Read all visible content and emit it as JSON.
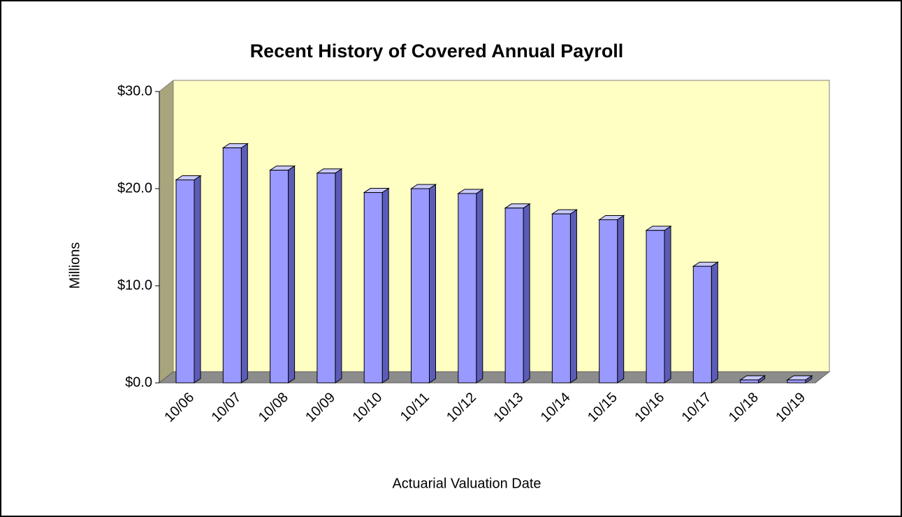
{
  "chart_data": {
    "type": "bar3d",
    "title": "Recent History of Covered Annual Payroll",
    "y_label": "Millions",
    "x_label": "Actuarial Valuation Date",
    "categories": [
      "10/06",
      "10/07",
      "10/08",
      "10/09",
      "10/10",
      "10/11",
      "10/12",
      "10/13",
      "10/14",
      "10/15",
      "10/16",
      "10/17",
      "10/18",
      "10/19"
    ],
    "values": [
      20.9,
      24.2,
      21.9,
      21.6,
      19.6,
      20.0,
      19.5,
      18.0,
      17.4,
      16.8,
      15.7,
      12.0,
      0.3,
      0.3
    ],
    "color": "#9999ff",
    "ylim": [
      0,
      30
    ],
    "yticks": [
      {
        "value": 0,
        "label": "$0.0"
      },
      {
        "value": 10,
        "label": "$10.0"
      },
      {
        "value": 20,
        "label": "$20.0"
      },
      {
        "value": 30,
        "label": "$30.0"
      }
    ],
    "grid": false
  }
}
